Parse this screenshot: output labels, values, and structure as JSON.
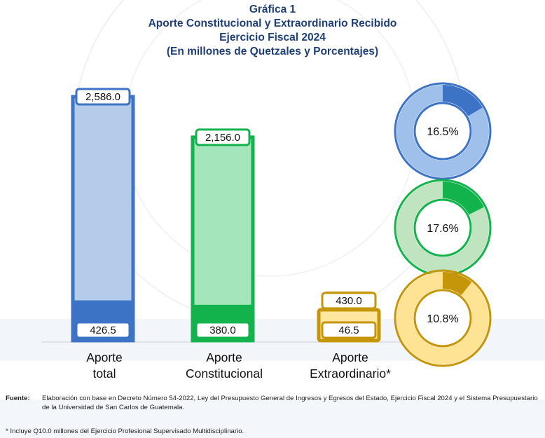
{
  "title": {
    "line1": "Gráfica 1",
    "line2": "Aporte Constitucional y Extraordinario Recibido",
    "line3": "Ejercicio Fiscal 2024",
    "line4": "(En millones de Quetzales y Porcentajes)"
  },
  "chart_data": {
    "type": "bar",
    "categories": [
      [
        "Aporte",
        "total"
      ],
      [
        "Aporte",
        "Constitucional"
      ],
      [
        "Aporte",
        "Extraordinario*"
      ]
    ],
    "series": [
      {
        "values": [
          2586.0,
          2156.0,
          430.0
        ]
      },
      {
        "values": [
          426.5,
          380.0,
          46.5
        ]
      }
    ],
    "value_labels_total": [
      "2,586.0",
      "2,156.0",
      "430.0"
    ],
    "value_labels_part": [
      "426.5",
      "380.0",
      "46.5"
    ],
    "ylim": [
      0,
      2586.0
    ],
    "grid": false,
    "colors": [
      {
        "dark": "#3d73c4",
        "light": "#b4cbea",
        "ring_light": "#9ec0ea"
      },
      {
        "dark": "#12b24c",
        "light": "#a5e5bb",
        "ring_light": "#c0e4c0"
      },
      {
        "dark": "#c6960a",
        "light": "#ffe7a0",
        "ring_light": "#ffe394"
      }
    ],
    "donuts": [
      {
        "value": 16.5,
        "label": "16.5%"
      },
      {
        "value": 17.6,
        "label": "17.6%"
      },
      {
        "value": 10.8,
        "label": "10.8%"
      }
    ]
  },
  "footnotes": {
    "source_label": "Fuente:",
    "source_text": "Elaboración con base en Decreto Número 54-2022, Ley del Presupuesto General de Ingresos y Egresos del Estado, Ejercicio Fiscal 2024 y el Sistema Presupuestario de la Universidad de San Carlos de Guatemala.",
    "note": "* Incluye Q10.0 millones del Ejercicio Profesional Supervisado Multidisciplinario."
  }
}
